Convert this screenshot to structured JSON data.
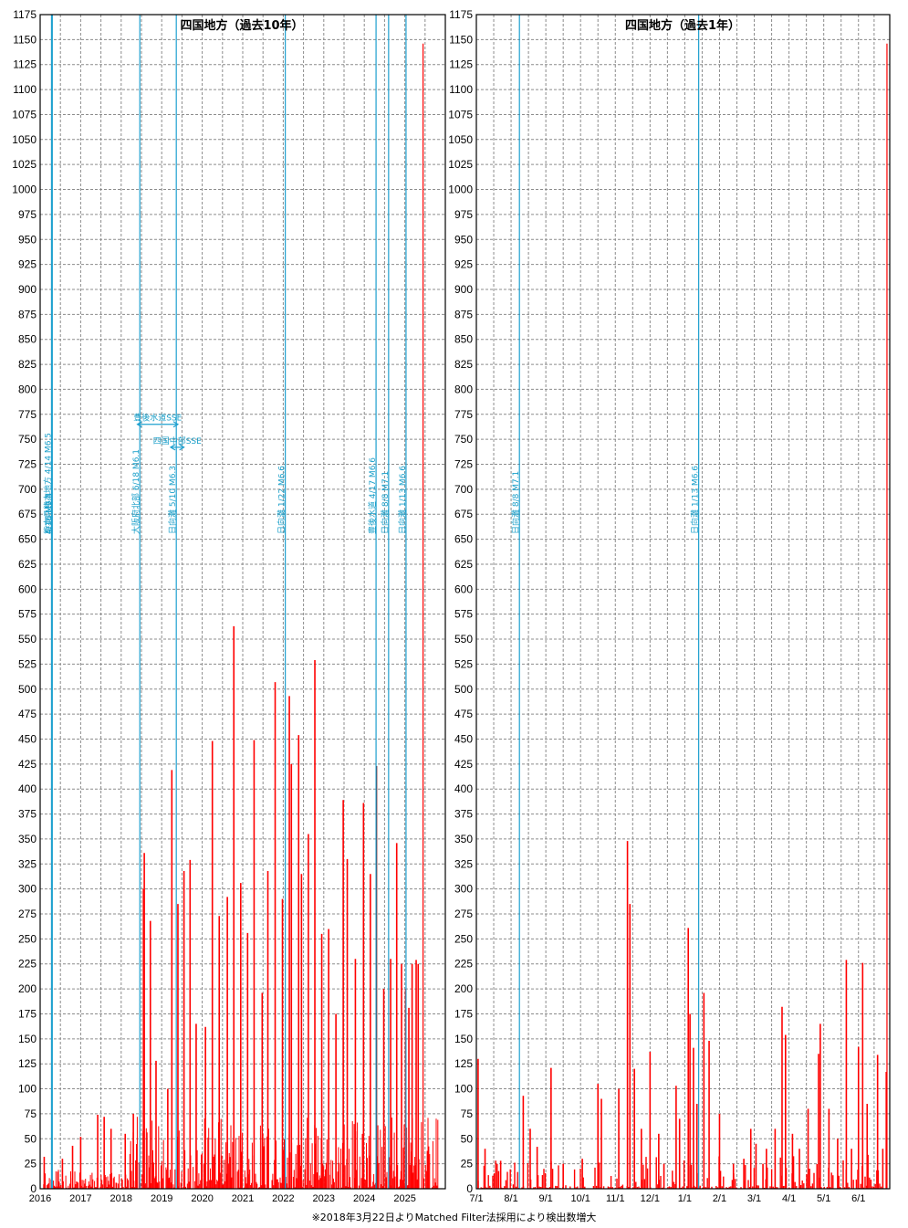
{
  "colors": {
    "bar": "#ff0000",
    "event_line": "#1ea0cf",
    "grid": "#8c8c8c",
    "frame": "#000000",
    "dark_bar": "#6b0000"
  },
  "chart_data": [
    {
      "type": "bar",
      "title": "四国地方（過去10年）",
      "xlabel": "",
      "ylabel": "",
      "ylim": [
        0,
        1175
      ],
      "y_tick_step": 25,
      "grid": true,
      "x_tick_labels": [
        "2016",
        "2017",
        "2018",
        "2019",
        "2020",
        "2021",
        "2022",
        "2023",
        "2024",
        "2025"
      ],
      "x_ticks_years": [
        2016,
        2017,
        2018,
        2019,
        2020,
        2021,
        2022,
        2023,
        2024,
        2025
      ],
      "xlim_years": [
        2016.0,
        2026.0
      ],
      "peaks": [
        {
          "x": 2016.1,
          "y": 32
        },
        {
          "x": 2016.55,
          "y": 30
        },
        {
          "x": 2016.8,
          "y": 43
        },
        {
          "x": 2017.0,
          "y": 52
        },
        {
          "x": 2017.42,
          "y": 74
        },
        {
          "x": 2017.58,
          "y": 72
        },
        {
          "x": 2017.75,
          "y": 60
        },
        {
          "x": 2018.1,
          "y": 55
        },
        {
          "x": 2018.3,
          "y": 75
        },
        {
          "x": 2018.55,
          "y": 300
        },
        {
          "x": 2018.57,
          "y": 336
        },
        {
          "x": 2018.72,
          "y": 268
        },
        {
          "x": 2018.86,
          "y": 128
        },
        {
          "x": 2019.15,
          "y": 100
        },
        {
          "x": 2019.25,
          "y": 419
        },
        {
          "x": 2019.4,
          "y": 285
        },
        {
          "x": 2019.55,
          "y": 318
        },
        {
          "x": 2019.7,
          "y": 329
        },
        {
          "x": 2019.85,
          "y": 165
        },
        {
          "x": 2020.08,
          "y": 162
        },
        {
          "x": 2020.25,
          "y": 448
        },
        {
          "x": 2020.42,
          "y": 273
        },
        {
          "x": 2020.62,
          "y": 292
        },
        {
          "x": 2020.78,
          "y": 563
        },
        {
          "x": 2020.95,
          "y": 306
        },
        {
          "x": 2021.12,
          "y": 256
        },
        {
          "x": 2021.28,
          "y": 449
        },
        {
          "x": 2021.48,
          "y": 196
        },
        {
          "x": 2021.62,
          "y": 318
        },
        {
          "x": 2021.8,
          "y": 507
        },
        {
          "x": 2021.98,
          "y": 290
        },
        {
          "x": 2022.15,
          "y": 493
        },
        {
          "x": 2022.2,
          "y": 425
        },
        {
          "x": 2022.38,
          "y": 454
        },
        {
          "x": 2022.45,
          "y": 315
        },
        {
          "x": 2022.62,
          "y": 355
        },
        {
          "x": 2022.78,
          "y": 529
        },
        {
          "x": 2022.95,
          "y": 255
        },
        {
          "x": 2023.12,
          "y": 260
        },
        {
          "x": 2023.3,
          "y": 175
        },
        {
          "x": 2023.48,
          "y": 389
        },
        {
          "x": 2023.58,
          "y": 330
        },
        {
          "x": 2023.78,
          "y": 230
        },
        {
          "x": 2023.98,
          "y": 386
        },
        {
          "x": 2024.15,
          "y": 315
        },
        {
          "x": 2024.3,
          "y": 423
        },
        {
          "x": 2024.48,
          "y": 200
        },
        {
          "x": 2024.65,
          "y": 230
        },
        {
          "x": 2024.8,
          "y": 346
        },
        {
          "x": 2024.92,
          "y": 225
        },
        {
          "x": 2025.02,
          "y": 200
        },
        {
          "x": 2025.1,
          "y": 181
        },
        {
          "x": 2025.18,
          "y": 225
        },
        {
          "x": 2025.28,
          "y": 229
        },
        {
          "x": 2025.33,
          "y": 225
        },
        {
          "x": 2025.45,
          "y": 1146
        }
      ],
      "events": [
        {
          "x": 2016.28,
          "label": "熊本県熊本地方 4/14 M6.5"
        },
        {
          "x": 2016.29,
          "label": "4/15 M6.4"
        },
        {
          "x": 2016.3,
          "label": "4/16 M7.3"
        },
        {
          "x": 2018.46,
          "label": "大阪府北部 6/18 M6.1"
        },
        {
          "x": 2019.36,
          "label": "日向灘 5/10 M6.3"
        },
        {
          "x": 2022.05,
          "label": "日向灘 1/22 M6.6"
        },
        {
          "x": 2024.29,
          "label": "豊後水道 4/17 M6.6"
        },
        {
          "x": 2024.6,
          "label": "日向灘 8/8 M7.1"
        },
        {
          "x": 2025.03,
          "label": "日向灘 1/13 M6.6"
        }
      ],
      "sse": [
        {
          "label": "豊後水道SSE",
          "from": 2018.4,
          "to": 2019.4,
          "level": 765
        },
        {
          "label": "四国中部SSE",
          "from": 2019.22,
          "to": 2019.55,
          "level": 742
        }
      ]
    },
    {
      "type": "bar",
      "title": "四国地方（過去1年）",
      "xlabel": "",
      "ylabel": "",
      "ylim": [
        0,
        1175
      ],
      "y_tick_step": 25,
      "grid": true,
      "x_tick_labels": [
        "7/1",
        "8/1",
        "9/1",
        "10/1",
        "11/1",
        "12/1",
        "1/1",
        "2/1",
        "3/1",
        "4/1",
        "5/1",
        "6/1"
      ],
      "xlim_months": [
        0,
        11.9
      ],
      "peaks": [
        {
          "x": 0.05,
          "y": 130
        },
        {
          "x": 0.25,
          "y": 40
        },
        {
          "x": 0.7,
          "y": 28
        },
        {
          "x": 1.35,
          "y": 93
        },
        {
          "x": 1.55,
          "y": 60
        },
        {
          "x": 1.75,
          "y": 42
        },
        {
          "x": 2.15,
          "y": 121
        },
        {
          "x": 2.5,
          "y": 25
        },
        {
          "x": 3.05,
          "y": 30
        },
        {
          "x": 3.5,
          "y": 105
        },
        {
          "x": 3.6,
          "y": 90
        },
        {
          "x": 4.1,
          "y": 100
        },
        {
          "x": 4.35,
          "y": 348
        },
        {
          "x": 4.42,
          "y": 285
        },
        {
          "x": 4.55,
          "y": 120
        },
        {
          "x": 4.75,
          "y": 60
        },
        {
          "x": 5.0,
          "y": 137
        },
        {
          "x": 5.25,
          "y": 55
        },
        {
          "x": 5.4,
          "y": 25
        },
        {
          "x": 5.75,
          "y": 103
        },
        {
          "x": 5.85,
          "y": 70
        },
        {
          "x": 6.1,
          "y": 261
        },
        {
          "x": 6.15,
          "y": 175
        },
        {
          "x": 6.25,
          "y": 141
        },
        {
          "x": 6.35,
          "y": 85
        },
        {
          "x": 6.55,
          "y": 196
        },
        {
          "x": 6.7,
          "y": 148
        },
        {
          "x": 7.0,
          "y": 75
        },
        {
          "x": 7.4,
          "y": 25
        },
        {
          "x": 7.7,
          "y": 30
        },
        {
          "x": 7.9,
          "y": 60
        },
        {
          "x": 8.05,
          "y": 45
        },
        {
          "x": 8.25,
          "y": 25
        },
        {
          "x": 8.35,
          "y": 40
        },
        {
          "x": 8.6,
          "y": 60
        },
        {
          "x": 8.8,
          "y": 182
        },
        {
          "x": 8.9,
          "y": 154
        },
        {
          "x": 9.1,
          "y": 55
        },
        {
          "x": 9.3,
          "y": 40
        },
        {
          "x": 9.55,
          "y": 80
        },
        {
          "x": 9.85,
          "y": 135
        },
        {
          "x": 9.9,
          "y": 165
        },
        {
          "x": 10.15,
          "y": 80
        },
        {
          "x": 10.4,
          "y": 50
        },
        {
          "x": 10.65,
          "y": 229
        },
        {
          "x": 10.8,
          "y": 40
        },
        {
          "x": 11.0,
          "y": 142
        },
        {
          "x": 11.12,
          "y": 226
        },
        {
          "x": 11.25,
          "y": 85
        },
        {
          "x": 11.55,
          "y": 134
        },
        {
          "x": 11.7,
          "y": 40
        },
        {
          "x": 11.8,
          "y": 117
        },
        {
          "x": 11.82,
          "y": 1146
        }
      ],
      "events": [
        {
          "x": 1.24,
          "label": "日向灘 8/8 M7.1"
        },
        {
          "x": 6.4,
          "label": "日向灘 1/13 M6.6"
        }
      ]
    }
  ],
  "footnote": "※2018年3月22日よりMatched Filter法採用により検出数増大"
}
